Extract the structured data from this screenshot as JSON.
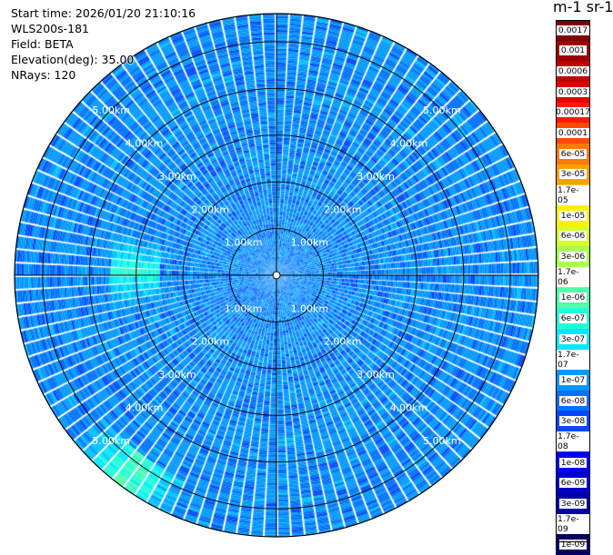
{
  "info": {
    "start_time": "Start time: 2026/01/20 21:10:16",
    "instrument": "WLS200s-181",
    "field": "Field: BETA",
    "elevation": "Elevation(deg): 35.00",
    "nrays": "NRays: 120"
  },
  "colorbar": {
    "unit_label": "m-1 sr-1",
    "labels": [
      "0.0017",
      "0.001",
      "0.0006",
      "0.0003",
      "0.00017",
      "0.0001",
      "6e-05",
      "3e-05",
      "1.7e-05",
      "1e-05",
      "6e-06",
      "3e-06",
      "1.7e-06",
      "1e-06",
      "6e-07",
      "3e-07",
      "1.7e-07",
      "1e-07",
      "6e-08",
      "3e-08",
      "1.7e-08",
      "1e-08",
      "6e-09",
      "3e-09",
      "1.7e-09",
      "1e-09"
    ],
    "colors": [
      "#7f0000",
      "#9c0000",
      "#c00000",
      "#e00000",
      "#ff1a00",
      "#ff4a00",
      "#ff7a00",
      "#ffa000",
      "#ffc800",
      "#fff000",
      "#d8ff20",
      "#a8ff50",
      "#80ff80",
      "#50ffa8",
      "#20ffd8",
      "#00e8ff",
      "#00c0ff",
      "#0098ff",
      "#0070ff",
      "#0048ff",
      "#0020ff",
      "#0000f0",
      "#0000c8",
      "#0000a0",
      "#000080",
      "#000060"
    ]
  },
  "chart_data": {
    "type": "heatmap",
    "projection": "polar PPI",
    "field": "BETA",
    "elevation_deg": 35.0,
    "nrays": 120,
    "range_ring_labels": [
      "1.00km",
      "2.00km",
      "3.00km",
      "4.00km",
      "5.00km"
    ],
    "range_rings_km": [
      1.0,
      2.0,
      3.0,
      4.0,
      5.0
    ],
    "max_range_km": 5.6,
    "dominant_value_range": [
      3e-08,
      1.7e-07
    ],
    "enhanced_regions": [
      {
        "azimuth_deg": 270,
        "range_km": [
          2.5,
          3.5
        ],
        "value": 1e-06
      },
      {
        "azimuth_deg": 215,
        "range_km": [
          4.8,
          5.6
        ],
        "value": 1.7e-06
      }
    ],
    "colorscale": "log",
    "value_min": 1e-09,
    "value_max": 0.0017
  }
}
